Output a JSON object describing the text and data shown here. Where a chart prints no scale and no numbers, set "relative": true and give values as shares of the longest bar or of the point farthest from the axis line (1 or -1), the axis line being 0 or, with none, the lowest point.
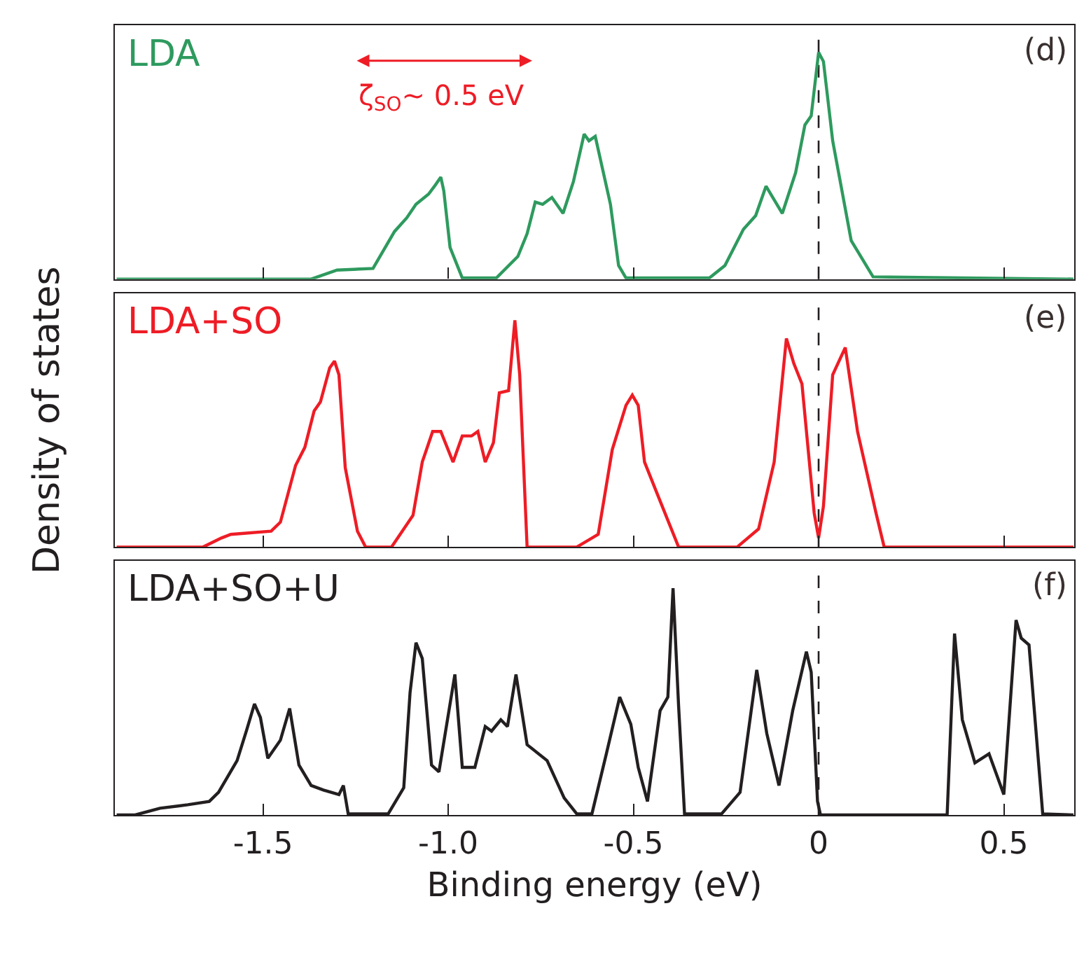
{
  "chart_data": [
    {
      "type": "line",
      "relative": true,
      "xlim": [
        -1.9,
        0.69
      ],
      "xticks": [
        {
          "value": -1.5,
          "label": null
        },
        {
          "value": -1.0,
          "label": null
        },
        {
          "value": -0.5,
          "label": null
        },
        {
          "value": 0,
          "label": null
        },
        {
          "value": 0.5,
          "label": null
        }
      ],
      "tick_labels": false,
      "grid": false,
      "legend": "top left",
      "marker": "none",
      "line_style": "solid",
      "series": [
        {
          "name": "LDA",
          "color": "#2e9a5e",
          "x": [
            -1.895,
            -1.37,
            -1.3,
            -1.203,
            -1.145,
            -1.112,
            -1.087,
            -1.053,
            -1.037,
            -1.02,
            -1.012,
            -0.995,
            -0.962,
            -0.87,
            -0.812,
            -0.787,
            -0.765,
            -0.745,
            -0.72,
            -0.69,
            -0.662,
            -0.633,
            -0.62,
            -0.603,
            -0.562,
            -0.54,
            -0.52,
            -0.295,
            -0.253,
            -0.203,
            -0.17,
            -0.142,
            -0.098,
            -0.062,
            -0.037,
            -0.02,
            0,
            0.013,
            0.038,
            0.088,
            0.147,
            0.688
          ],
          "values": [
            0,
            0,
            0.04,
            0.047,
            0.21,
            0.27,
            0.33,
            0.375,
            0.41,
            0.45,
            0.39,
            0.14,
            0.005,
            0.005,
            0.1,
            0.2,
            0.34,
            0.33,
            0.36,
            0.29,
            0.43,
            0.64,
            0.61,
            0.63,
            0.33,
            0.06,
            0.005,
            0.005,
            0.06,
            0.22,
            0.28,
            0.41,
            0.29,
            0.47,
            0.68,
            0.72,
            1.0,
            0.96,
            0.61,
            0.17,
            0.01,
            0
          ]
        }
      ],
      "ref_lines": [
        {
          "axis": "x",
          "value": 0,
          "label": null,
          "color": "#231f20",
          "line_style": "dashed"
        }
      ],
      "annotations": [
        "(d)",
        "ζ$_{SO}$~ 0.5 eV"
      ]
    },
    {
      "type": "line",
      "relative": true,
      "xlim": [
        -1.9,
        0.69
      ],
      "xticks": [
        {
          "value": -1.5,
          "label": null
        },
        {
          "value": -1.0,
          "label": null
        },
        {
          "value": -0.5,
          "label": null
        },
        {
          "value": 0,
          "label": null
        },
        {
          "value": 0.5,
          "label": null
        }
      ],
      "tick_labels": false,
      "grid": false,
      "legend": "top left",
      "marker": "none",
      "line_style": "solid",
      "ylabel": "Density of states",
      "series": [
        {
          "name": "LDA+SO",
          "color": "#ee1c25",
          "x": [
            -1.895,
            -1.662,
            -1.612,
            -1.587,
            -1.478,
            -1.453,
            -1.412,
            -1.387,
            -1.362,
            -1.345,
            -1.32,
            -1.307,
            -1.295,
            -1.278,
            -1.245,
            -1.223,
            -1.153,
            -1.095,
            -1.07,
            -1.042,
            -1.02,
            -0.987,
            -0.962,
            -0.937,
            -0.92,
            -0.9,
            -0.878,
            -0.862,
            -0.837,
            -0.82,
            -0.807,
            -0.787,
            -0.653,
            -0.595,
            -0.557,
            -0.52,
            -0.503,
            -0.487,
            -0.47,
            -0.437,
            -0.378,
            -0.22,
            -0.162,
            -0.12,
            -0.087,
            -0.067,
            -0.045,
            -0.012,
            0,
            0.013,
            0.038,
            0.072,
            0.105,
            0.155,
            0.177,
            0.688
          ],
          "values": [
            0,
            0,
            0.04,
            0.056,
            0.07,
            0.11,
            0.36,
            0.44,
            0.6,
            0.64,
            0.79,
            0.82,
            0.76,
            0.35,
            0.07,
            0,
            0,
            0.14,
            0.375,
            0.51,
            0.51,
            0.375,
            0.49,
            0.49,
            0.51,
            0.375,
            0.46,
            0.68,
            0.69,
            1.0,
            0.76,
            0,
            0,
            0.056,
            0.43,
            0.625,
            0.67,
            0.625,
            0.375,
            0.24,
            0,
            0,
            0.08,
            0.375,
            0.92,
            0.81,
            0.72,
            0.15,
            0.04,
            0.18,
            0.76,
            0.88,
            0.51,
            0.15,
            0,
            0
          ]
        }
      ],
      "ref_lines": [
        {
          "axis": "x",
          "value": 0,
          "label": null,
          "color": "#231f20",
          "line_style": "dashed"
        }
      ],
      "annotations": [
        "(e)"
      ]
    },
    {
      "type": "line",
      "relative": true,
      "xlim": [
        -1.9,
        0.69
      ],
      "xticks": [
        {
          "value": -1.5,
          "label": "-1.5"
        },
        {
          "value": -1.0,
          "label": "-1.0"
        },
        {
          "value": -0.5,
          "label": "-0.5"
        },
        0,
        0.5
      ],
      "tick_labels": "x",
      "grid": false,
      "legend": "top left",
      "marker": "none",
      "line_style": "solid",
      "xlabel": "Binding energy (eV)",
      "series": [
        {
          "name": "LDA+SO+U",
          "color": "#231f20",
          "x": [
            -1.895,
            -1.845,
            -1.778,
            -1.703,
            -1.645,
            -1.62,
            -1.57,
            -1.545,
            -1.523,
            -1.507,
            -1.487,
            -1.453,
            -1.428,
            -1.403,
            -1.37,
            -1.337,
            -1.295,
            -1.283,
            -1.27,
            -1.162,
            -1.12,
            -1.103,
            -1.087,
            -1.07,
            -1.045,
            -1.025,
            -0.982,
            -0.962,
            -0.928,
            -0.9,
            -0.883,
            -0.858,
            -0.84,
            -0.817,
            -0.787,
            -0.733,
            -0.687,
            -0.653,
            -0.612,
            -0.573,
            -0.537,
            -0.507,
            -0.487,
            -0.462,
            -0.428,
            -0.407,
            -0.393,
            -0.378,
            -0.362,
            -0.262,
            -0.212,
            -0.167,
            -0.14,
            -0.107,
            -0.07,
            -0.033,
            -0.02,
            -0.003,
            0.005,
            0.347,
            0.367,
            0.388,
            0.422,
            0.46,
            0.5,
            0.533,
            0.547,
            0.568,
            0.605,
            0.688
          ],
          "values": [
            0,
            0,
            0.03,
            0.045,
            0.06,
            0.1,
            0.24,
            0.37,
            0.49,
            0.43,
            0.25,
            0.33,
            0.47,
            0.22,
            0.13,
            0.11,
            0.09,
            0.13,
            0.005,
            0.005,
            0.12,
            0.54,
            0.76,
            0.69,
            0.22,
            0.19,
            0.62,
            0.21,
            0.21,
            0.39,
            0.37,
            0.42,
            0.39,
            0.62,
            0.31,
            0.24,
            0.075,
            0.005,
            0.005,
            0.27,
            0.52,
            0.4,
            0.21,
            0.06,
            0.46,
            0.52,
            1.0,
            0.48,
            0.005,
            0.005,
            0.1,
            0.64,
            0.36,
            0.13,
            0.46,
            0.72,
            0.63,
            0.06,
            0,
            0,
            0.8,
            0.42,
            0.23,
            0.27,
            0.09,
            0.86,
            0.78,
            0.75,
            0.005,
            0
          ]
        }
      ],
      "ref_lines": [
        {
          "axis": "x",
          "value": 0,
          "label": null,
          "color": "#231f20",
          "line_style": "dashed"
        }
      ],
      "annotations": [
        "(f)"
      ]
    }
  ]
}
